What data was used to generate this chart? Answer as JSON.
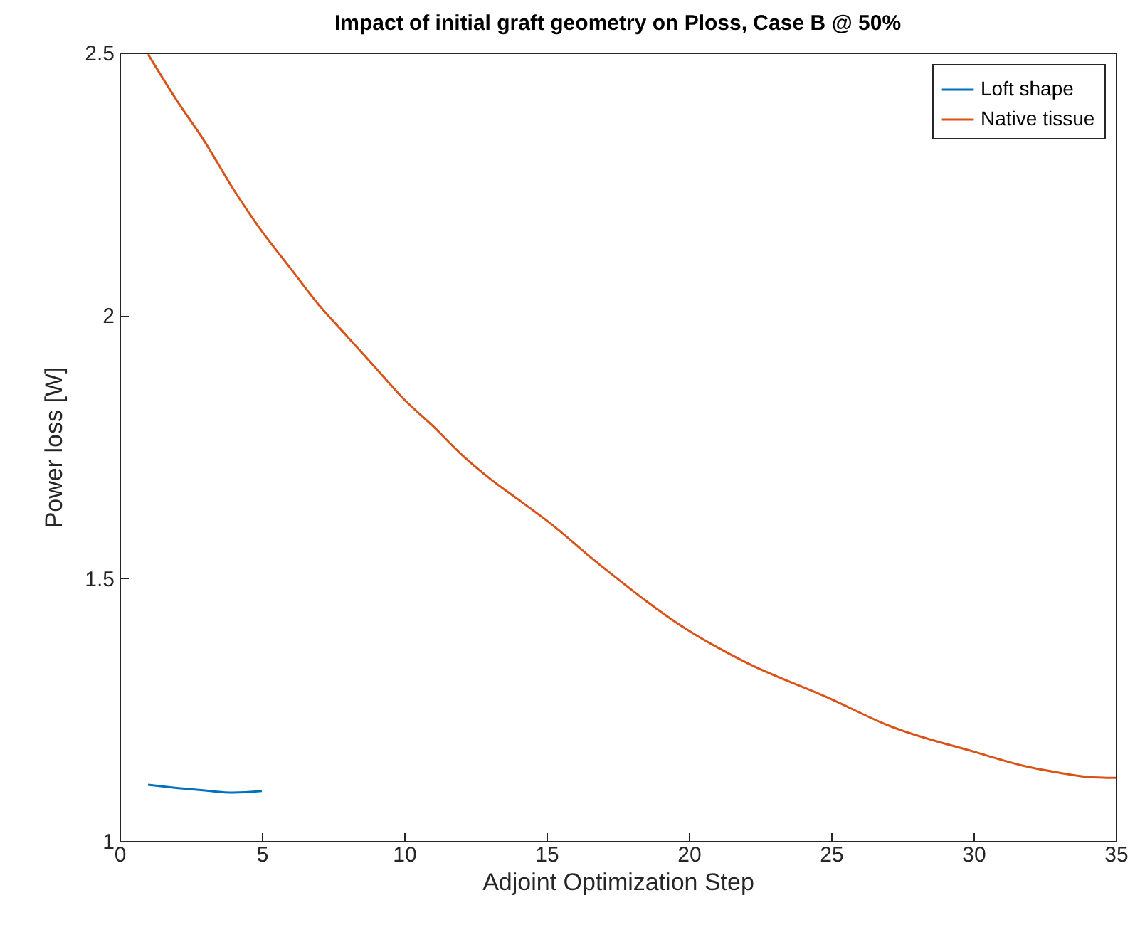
{
  "chart_data": {
    "type": "line",
    "title": "Impact of initial graft geometry on Ploss, Case B @ 50%",
    "xlabel": "Adjoint Optimization Step",
    "ylabel": "Power loss [W]",
    "series": [
      {
        "name": "Loft shape",
        "color": "#0072bd",
        "x": [
          1,
          2,
          3,
          4,
          5
        ],
        "values": [
          1.107,
          1.101,
          1.096,
          1.092,
          1.095
        ]
      },
      {
        "name": "Native tissue",
        "color": "#d95319",
        "x": [
          1,
          2,
          3,
          4,
          5,
          6,
          7,
          8,
          9,
          10,
          11,
          12,
          13,
          14,
          15,
          17,
          20,
          22,
          25,
          27,
          30,
          32,
          33,
          34,
          35
        ],
        "values": [
          2.497,
          2.41,
          2.33,
          2.24,
          2.16,
          2.09,
          2.02,
          1.96,
          1.9,
          1.84,
          1.79,
          1.736,
          1.69,
          1.65,
          1.61,
          1.52,
          1.4,
          1.34,
          1.27,
          1.22,
          1.17,
          1.14,
          1.13,
          1.122,
          1.12
        ]
      }
    ],
    "xlim": [
      0,
      35
    ],
    "ylim": [
      1,
      2.5
    ],
    "xticks": [
      0,
      5,
      10,
      15,
      20,
      25,
      30,
      35
    ],
    "yticks": [
      1,
      1.5,
      2,
      2.5
    ],
    "legend": "top right"
  }
}
